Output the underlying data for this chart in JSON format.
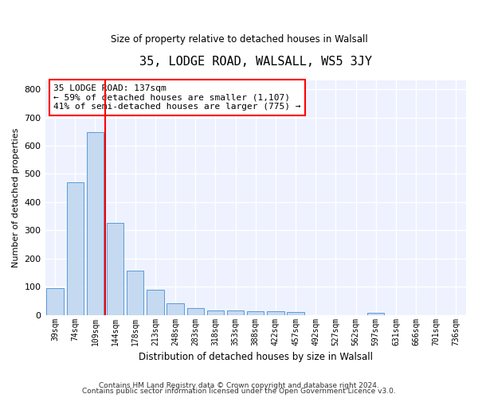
{
  "title": "35, LODGE ROAD, WALSALL, WS5 3JY",
  "subtitle": "Size of property relative to detached houses in Walsall",
  "xlabel": "Distribution of detached houses by size in Walsall",
  "ylabel": "Number of detached properties",
  "bar_color": "#c5d9f1",
  "bar_edge_color": "#5b9bd5",
  "categories": [
    "39sqm",
    "74sqm",
    "109sqm",
    "144sqm",
    "178sqm",
    "213sqm",
    "248sqm",
    "283sqm",
    "318sqm",
    "353sqm",
    "388sqm",
    "422sqm",
    "457sqm",
    "492sqm",
    "527sqm",
    "562sqm",
    "597sqm",
    "631sqm",
    "666sqm",
    "701sqm",
    "736sqm"
  ],
  "values": [
    95,
    470,
    648,
    325,
    158,
    90,
    40,
    23,
    16,
    15,
    14,
    14,
    10,
    0,
    0,
    0,
    8,
    0,
    0,
    0,
    0
  ],
  "ylim": [
    0,
    830
  ],
  "yticks": [
    0,
    100,
    200,
    300,
    400,
    500,
    600,
    700,
    800
  ],
  "red_line_x": 2.5,
  "annotation_box_text_line1": "35 LODGE ROAD: 137sqm",
  "annotation_box_text_line2": "← 59% of detached houses are smaller (1,107)",
  "annotation_box_text_line3": "41% of semi-detached houses are larger (775) →",
  "background_color": "#eef2ff",
  "grid_color": "#ffffff",
  "footer1": "Contains HM Land Registry data © Crown copyright and database right 2024.",
  "footer2": "Contains public sector information licensed under the Open Government Licence v3.0."
}
